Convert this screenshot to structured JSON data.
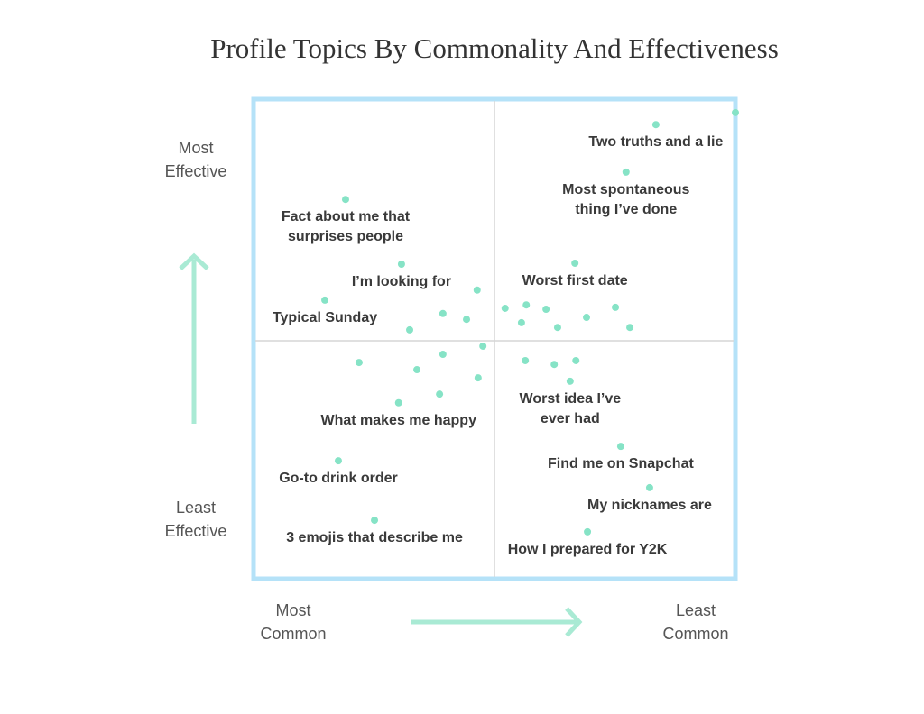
{
  "chart_data": {
    "type": "scatter",
    "title": "Profile Topics By Commonality And Effectiveness",
    "y_label_high": "Most Effective",
    "y_label_low": "Least Effective",
    "x_label_low": "Most Common",
    "x_label_high": "Least Common",
    "xlim": [
      0,
      100
    ],
    "ylim": [
      0,
      100
    ],
    "color": "#86e3c6",
    "x": [
      83.5,
      100,
      77.3,
      19.1,
      30.7,
      14.8,
      66.7,
      65.7,
      30.1,
      17.6,
      25.1,
      76.2,
      82.2,
      69.3,
      46.4,
      39.3,
      44.2,
      32.4,
      52.2,
      56.6,
      60.7,
      55.6,
      63.1,
      69.1,
      75.1,
      78.1,
      47.6,
      39.3,
      21.9,
      33.9,
      46.6,
      38.6,
      56.4,
      62.4,
      66.9
    ],
    "values": [
      94.7,
      97.2,
      84.8,
      79.1,
      65.6,
      58.1,
      65.8,
      41.2,
      36.7,
      24.6,
      12.2,
      27.6,
      19.0,
      9.8,
      60.2,
      55.3,
      54.1,
      51.9,
      56.4,
      57.1,
      56.2,
      53.4,
      52.4,
      54.5,
      56.6,
      52.4,
      48.5,
      46.8,
      45.1,
      43.6,
      41.9,
      38.5,
      45.5,
      44.7,
      45.5
    ],
    "labels": [
      "Two truths and a lie",
      null,
      "Most spontaneous thing I’ve done",
      "Fact about me that surprises people",
      "I’m looking for",
      "Typical Sunday",
      "Worst first date",
      "Worst idea I’ve ever had",
      "What makes me happy",
      "Go-to drink order",
      "3 emojis that describe me",
      "Find me on Snapchat",
      "My nicknames are",
      "How I prepared for Y2K",
      null,
      null,
      null,
      null,
      null,
      null,
      null,
      null,
      null,
      null,
      null,
      null,
      null,
      null,
      null,
      null,
      null,
      null,
      null,
      null,
      null
    ]
  }
}
